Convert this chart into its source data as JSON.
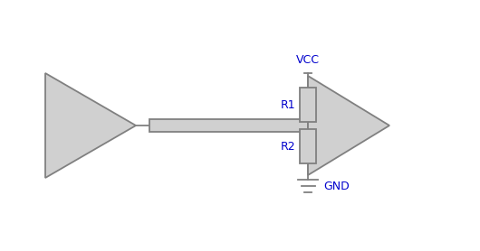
{
  "bg_color": "#ffffff",
  "line_color": "#808080",
  "tri_fill": "#d0d0d0",
  "tri_edge": "#808080",
  "resistor_fill": "#d0d0d0",
  "resistor_edge": "#808080",
  "vcc_color": "#0000cc",
  "gnd_color": "#0000cc",
  "r1_color": "#0000cc",
  "r2_color": "#0000cc",
  "vcc_text": "VCC",
  "gnd_text": "GND",
  "r1_text": "R1",
  "r2_text": "R2",
  "fig_w": 5.3,
  "fig_h": 2.78,
  "dpi": 100
}
